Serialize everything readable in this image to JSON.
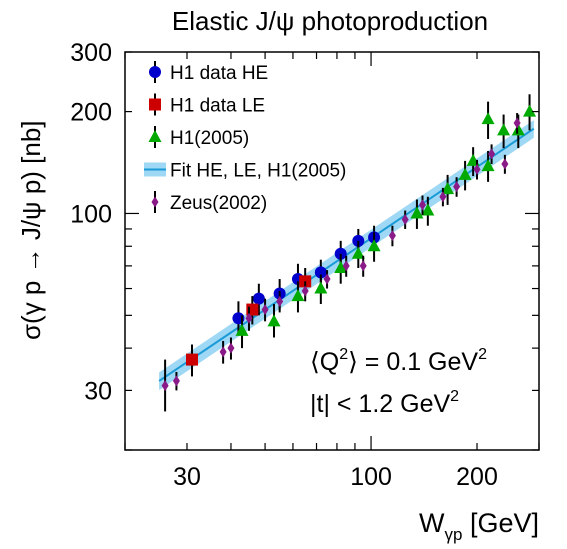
{
  "chart_data": {
    "type": "scatter",
    "title": "Elastic J/ψ photoproduction",
    "ylabel": "σ(γ p → J/ψ p) [nb]",
    "xlabel": "W",
    "xlabel_sub": "γp",
    "xlabel_unit": " [GeV]",
    "xscale": "log",
    "yscale": "log",
    "xlim": [
      20,
      300
    ],
    "ylim": [
      20,
      300
    ],
    "xticks": [
      {
        "v": 30,
        "label": "30"
      },
      {
        "v": 100,
        "label": "100"
      },
      {
        "v": 200,
        "label": "200"
      }
    ],
    "yticks": [
      {
        "v": 30,
        "label": "30"
      },
      {
        "v": 100,
        "label": "100"
      },
      {
        "v": 200,
        "label": "200"
      },
      {
        "v": 300,
        "label": "300"
      }
    ],
    "grid": false,
    "legend_position": "top-left",
    "legend": [
      {
        "key": "he",
        "label": "H1 data HE"
      },
      {
        "key": "le",
        "label": "H1 data LE"
      },
      {
        "key": "h105",
        "label": "H1(2005)"
      },
      {
        "key": "fit",
        "label": "Fit HE, LE, H1(2005)"
      },
      {
        "key": "zeus",
        "label": "Zeus(2002)"
      }
    ],
    "annotations": {
      "q2_pre": "⟨Q",
      "q2_sup": "2",
      "q2_post": "⟩ = 0.1 GeV",
      "q2_unit_sup": "2",
      "t_pre": "|t| < 1.2 GeV",
      "t_sup": "2"
    },
    "colors": {
      "he": "#0000cc",
      "le": "#cc0000",
      "h105": "#00aa00",
      "zeus": "#8b1a89",
      "fit_line": "#1a9ad6",
      "fit_band": "#9ed8f5"
    },
    "fit": {
      "x": [
        25,
        290
      ],
      "y": [
        32,
        178
      ],
      "band_frac": 0.06
    },
    "series": [
      {
        "name": "H1 data HE",
        "key": "he",
        "marker": "circle",
        "points": [
          {
            "x": 42,
            "y": 49,
            "lo": 44,
            "hi": 55
          },
          {
            "x": 48,
            "y": 56,
            "lo": 50,
            "hi": 62
          },
          {
            "x": 55,
            "y": 58,
            "lo": 52,
            "hi": 64
          },
          {
            "x": 62,
            "y": 64,
            "lo": 58,
            "hi": 71
          },
          {
            "x": 72,
            "y": 67,
            "lo": 61,
            "hi": 73
          },
          {
            "x": 82,
            "y": 76,
            "lo": 70,
            "hi": 83
          },
          {
            "x": 92,
            "y": 83,
            "lo": 76,
            "hi": 90
          },
          {
            "x": 102,
            "y": 85,
            "lo": 78,
            "hi": 92
          }
        ]
      },
      {
        "name": "H1 data LE",
        "key": "le",
        "marker": "square",
        "points": [
          {
            "x": 31,
            "y": 37,
            "lo": 33,
            "hi": 41
          },
          {
            "x": 46,
            "y": 52,
            "lo": 47,
            "hi": 57
          },
          {
            "x": 65,
            "y": 63,
            "lo": 57,
            "hi": 69
          }
        ]
      },
      {
        "name": "H1(2005)",
        "key": "h105",
        "marker": "triangle",
        "points": [
          {
            "x": 43,
            "y": 45,
            "lo": 40,
            "hi": 50
          },
          {
            "x": 53,
            "y": 48,
            "lo": 43,
            "hi": 54
          },
          {
            "x": 62,
            "y": 57,
            "lo": 51,
            "hi": 63
          },
          {
            "x": 72,
            "y": 60,
            "lo": 54,
            "hi": 66
          },
          {
            "x": 82,
            "y": 69,
            "lo": 62,
            "hi": 76
          },
          {
            "x": 92,
            "y": 76,
            "lo": 69,
            "hi": 83
          },
          {
            "x": 102,
            "y": 80,
            "lo": 72,
            "hi": 88
          },
          {
            "x": 135,
            "y": 100,
            "lo": 90,
            "hi": 110
          },
          {
            "x": 145,
            "y": 102,
            "lo": 92,
            "hi": 112
          },
          {
            "x": 165,
            "y": 118,
            "lo": 106,
            "hi": 130
          },
          {
            "x": 185,
            "y": 130,
            "lo": 117,
            "hi": 143
          },
          {
            "x": 195,
            "y": 143,
            "lo": 129,
            "hi": 157
          },
          {
            "x": 215,
            "y": 138,
            "lo": 124,
            "hi": 153
          },
          {
            "x": 215,
            "y": 190,
            "lo": 166,
            "hi": 214
          },
          {
            "x": 238,
            "y": 176,
            "lo": 156,
            "hi": 196
          },
          {
            "x": 262,
            "y": 176,
            "lo": 156,
            "hi": 196
          },
          {
            "x": 282,
            "y": 200,
            "lo": 176,
            "hi": 225
          }
        ]
      },
      {
        "name": "Zeus(2002)",
        "key": "zeus",
        "marker": "diamond",
        "points": [
          {
            "x": 26,
            "y": 31,
            "lo": 26,
            "hi": 37
          },
          {
            "x": 28,
            "y": 32,
            "lo": 30,
            "hi": 34
          },
          {
            "x": 38,
            "y": 39,
            "lo": 36,
            "hi": 42
          },
          {
            "x": 40,
            "y": 40,
            "lo": 37,
            "hi": 43
          },
          {
            "x": 45,
            "y": 49,
            "lo": 45,
            "hi": 53
          },
          {
            "x": 50,
            "y": 52,
            "lo": 48,
            "hi": 56
          },
          {
            "x": 55,
            "y": 55,
            "lo": 51,
            "hi": 59
          },
          {
            "x": 65,
            "y": 59,
            "lo": 55,
            "hi": 63
          },
          {
            "x": 75,
            "y": 64,
            "lo": 60,
            "hi": 68
          },
          {
            "x": 85,
            "y": 70,
            "lo": 65,
            "hi": 75
          },
          {
            "x": 95,
            "y": 70,
            "lo": 65,
            "hi": 75
          },
          {
            "x": 115,
            "y": 86,
            "lo": 80,
            "hi": 92
          },
          {
            "x": 125,
            "y": 96,
            "lo": 90,
            "hi": 102
          },
          {
            "x": 140,
            "y": 106,
            "lo": 99,
            "hi": 113
          },
          {
            "x": 160,
            "y": 112,
            "lo": 105,
            "hi": 119
          },
          {
            "x": 175,
            "y": 120,
            "lo": 112,
            "hi": 128
          },
          {
            "x": 200,
            "y": 135,
            "lo": 126,
            "hi": 144
          },
          {
            "x": 220,
            "y": 150,
            "lo": 140,
            "hi": 160
          },
          {
            "x": 240,
            "y": 140,
            "lo": 131,
            "hi": 149
          },
          {
            "x": 260,
            "y": 185,
            "lo": 172,
            "hi": 198
          }
        ]
      }
    ]
  }
}
